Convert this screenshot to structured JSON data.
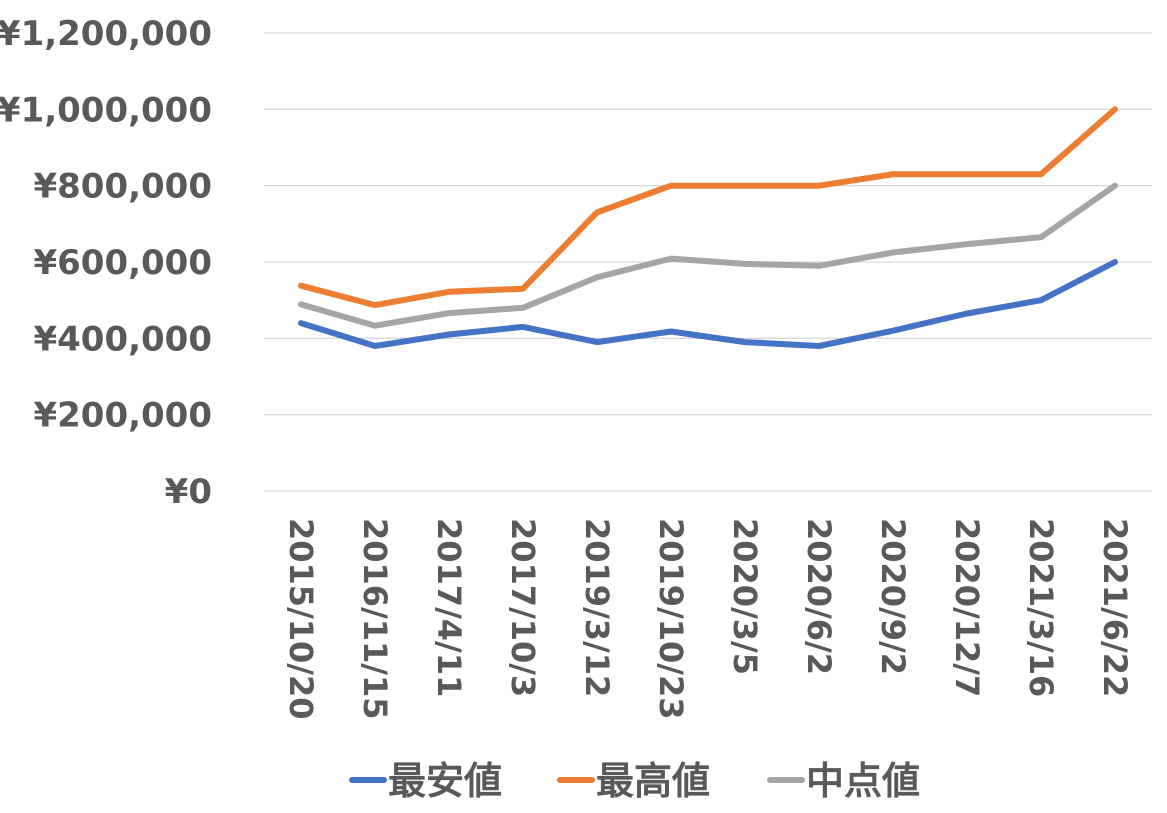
{
  "chart_data": {
    "type": "line",
    "title": "",
    "xlabel": "",
    "ylabel": "",
    "x": [
      "2015/10/20",
      "2016/11/15",
      "2017/4/11",
      "2017/10/3",
      "2019/3/12",
      "2019/10/23",
      "2020/3/5",
      "2020/6/2",
      "2020/9/2",
      "2020/12/7",
      "2021/3/16",
      "2021/6/22"
    ],
    "y_ticks": [
      "¥0",
      "¥200,000",
      "¥400,000",
      "¥600,000",
      "¥800,000",
      "¥1,000,000",
      "¥1,200,000"
    ],
    "ylim": [
      0,
      1200000
    ],
    "grid": true,
    "legend_position": "bottom",
    "series": [
      {
        "name": "最安値",
        "color": "#4472c4",
        "values": [
          440000,
          380000,
          410000,
          430000,
          390000,
          418000,
          390000,
          380000,
          420000,
          465000,
          500000,
          600000
        ]
      },
      {
        "name": "最高値",
        "color": "#ed7d31",
        "values": [
          538000,
          487000,
          522000,
          530000,
          730000,
          800000,
          800000,
          800000,
          830000,
          830000,
          830000,
          1000000
        ]
      },
      {
        "name": "中点値",
        "color": "#a5a5a5",
        "values": [
          489000,
          433000,
          466000,
          480000,
          560000,
          609000,
          595000,
          590000,
          625000,
          647000,
          665000,
          800000
        ]
      }
    ]
  }
}
